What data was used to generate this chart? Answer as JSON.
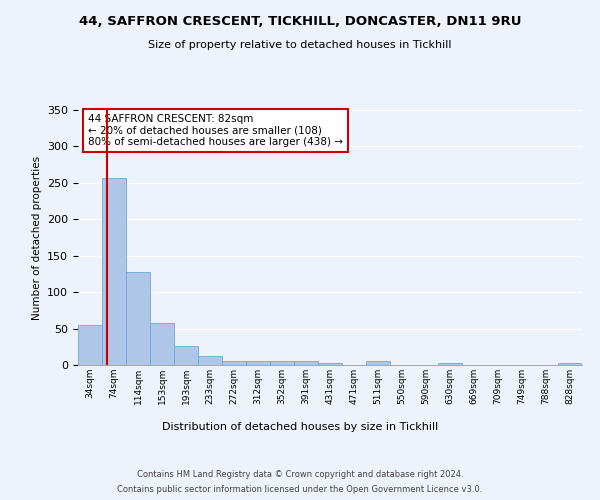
{
  "title1": "44, SAFFRON CRESCENT, TICKHILL, DONCASTER, DN11 9RU",
  "title2": "Size of property relative to detached houses in Tickhill",
  "xlabel": "Distribution of detached houses by size in Tickhill",
  "ylabel": "Number of detached properties",
  "footer1": "Contains HM Land Registry data © Crown copyright and database right 2024.",
  "footer2": "Contains public sector information licensed under the Open Government Licence v3.0.",
  "categories": [
    "34sqm",
    "74sqm",
    "114sqm",
    "153sqm",
    "193sqm",
    "233sqm",
    "272sqm",
    "312sqm",
    "352sqm",
    "391sqm",
    "431sqm",
    "471sqm",
    "511sqm",
    "550sqm",
    "590sqm",
    "630sqm",
    "669sqm",
    "709sqm",
    "749sqm",
    "788sqm",
    "828sqm"
  ],
  "values": [
    55,
    257,
    127,
    58,
    26,
    12,
    6,
    6,
    6,
    5,
    3,
    0,
    5,
    0,
    0,
    3,
    0,
    0,
    0,
    0,
    3
  ],
  "bar_color": "#aec6e8",
  "bar_edge_color": "#6aaad4",
  "property_line_color": "#cc0000",
  "annotation_text": "44 SAFFRON CRESCENT: 82sqm\n← 20% of detached houses are smaller (108)\n80% of semi-detached houses are larger (438) →",
  "annotation_box_color": "#ffffff",
  "annotation_box_edge_color": "#cc0000",
  "ylim": [
    0,
    350
  ],
  "background_color": "#eef2fb",
  "grid_color": "#ffffff"
}
